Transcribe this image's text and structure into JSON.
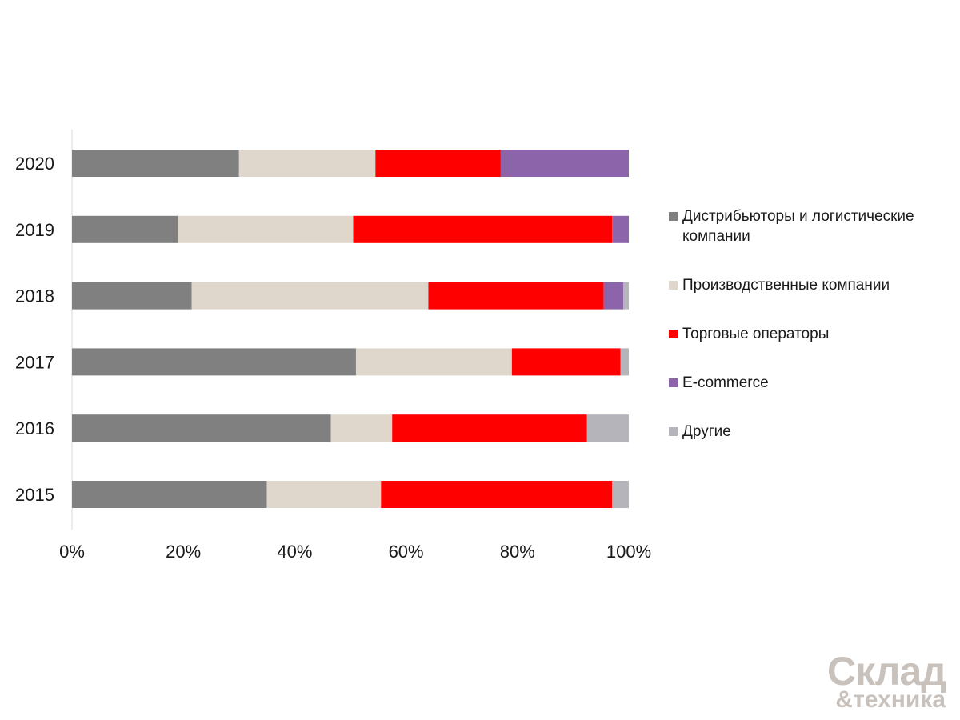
{
  "chart_data": {
    "type": "bar",
    "orientation": "horizontal",
    "stacked": true,
    "normalized_percent": true,
    "categories": [
      "2020",
      "2019",
      "2018",
      "2017",
      "2016",
      "2015"
    ],
    "series": [
      {
        "name": "Дистрибьюторы и логистические компании",
        "color": "#808080",
        "values": [
          30,
          19,
          21.5,
          51,
          46.5,
          35
        ]
      },
      {
        "name": "Производственные компании",
        "color": "#e0d7cc",
        "values": [
          24.5,
          31.5,
          42.5,
          28,
          11,
          20.5
        ]
      },
      {
        "name": "Торговые операторы",
        "color": "#ff0000",
        "values": [
          22.5,
          46.5,
          31.5,
          19.5,
          35,
          41.5
        ]
      },
      {
        "name": "E-commerce",
        "color": "#8b64aa",
        "values": [
          23,
          3,
          3.5,
          0,
          0,
          0
        ]
      },
      {
        "name": "Другие",
        "color": "#b4b4ba",
        "values": [
          0,
          0,
          1,
          1.5,
          7.5,
          3
        ]
      }
    ],
    "xlim": [
      0,
      100
    ],
    "x_ticks": [
      "0%",
      "20%",
      "40%",
      "60%",
      "80%",
      "100%"
    ],
    "grid": false,
    "legend_position": "right"
  },
  "legend": {
    "items": [
      {
        "label": "Дистрибьюторы и логистические компании",
        "color": "#808080"
      },
      {
        "label": "Производственные компании",
        "color": "#e0d7cc"
      },
      {
        "label": "Торговые операторы",
        "color": "#ff0000"
      },
      {
        "label": "E-commerce",
        "color": "#8b64aa"
      },
      {
        "label": "Другие",
        "color": "#b4b4ba"
      }
    ]
  },
  "watermark": {
    "line1": "Склад",
    "line2": "&техника"
  }
}
